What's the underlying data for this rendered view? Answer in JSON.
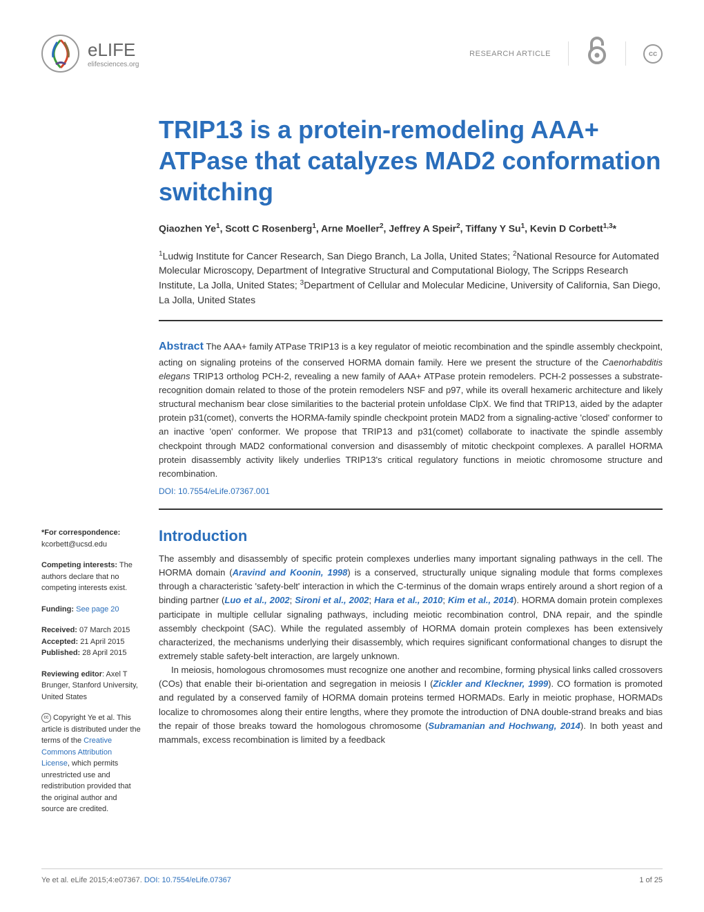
{
  "header": {
    "logo_text": "eLIFE",
    "logo_subtext": "elifesciences.org",
    "article_type": "RESEARCH ARTICLE",
    "cc_text": "cc"
  },
  "title": "TRIP13 is a protein-remodeling AAA+ ATPase that catalyzes MAD2 conformation switching",
  "authors_html": "Qiaozhen Ye<sup>1</sup>, Scott C Rosenberg<sup>1</sup>, Arne Moeller<sup>2</sup>, Jeffrey A Speir<sup>2</sup>, Tiffany Y Su<sup>1</sup>, Kevin D Corbett<sup>1,3</sup>*",
  "affiliations_html": "<sup>1</sup>Ludwig Institute for Cancer Research, San Diego Branch, La Jolla, United States; <sup>2</sup>National Resource for Automated Molecular Microscopy, Department of Integrative Structural and Computational Biology, The Scripps Research Institute, La Jolla, United States; <sup>3</sup>Department of Cellular and Molecular Medicine, University of California, San Diego, La Jolla, United States",
  "abstract": {
    "label": "Abstract",
    "text_html": "The AAA+ family ATPase TRIP13 is a key regulator of meiotic recombination and the spindle assembly checkpoint, acting on signaling proteins of the conserved HORMA domain family. Here we present the structure of the <em>Caenorhabditis elegans</em> TRIP13 ortholog PCH-2, revealing a new family of AAA+ ATPase protein remodelers. PCH-2 possesses a substrate-recognition domain related to those of the protein remodelers NSF and p97, while its overall hexameric architecture and likely structural mechanism bear close similarities to the bacterial protein unfoldase ClpX. We find that TRIP13, aided by the adapter protein p31(comet), converts the HORMA-family spindle checkpoint protein MAD2 from a signaling-active 'closed' conformer to an inactive 'open' conformer. We propose that TRIP13 and p31(comet) collaborate to inactivate the spindle assembly checkpoint through MAD2 conformational conversion and disassembly of mitotic checkpoint complexes. A parallel HORMA protein disassembly activity likely underlies TRIP13's critical regulatory functions in meiotic chromosome structure and recombination.",
    "doi": "DOI: 10.7554/eLife.07367.001"
  },
  "sidebar": {
    "correspondence_label": "*For correspondence:",
    "correspondence_value": "kcorbett@ucsd.edu",
    "competing_label": "Competing interests:",
    "competing_value": "The authors declare that no competing interests exist.",
    "funding_label": "Funding:",
    "funding_link": "See page 20",
    "received_label": "Received:",
    "received_value": "07 March 2015",
    "accepted_label": "Accepted:",
    "accepted_value": "21 April 2015",
    "published_label": "Published:",
    "published_value": "28 April 2015",
    "reviewing_label": "Reviewing editor",
    "reviewing_value": ": Axel T Brunger, Stanford University, United States",
    "copyright_prefix": "Copyright Ye et al. This article is distributed under the terms of the ",
    "license_link": "Creative Commons Attribution License",
    "copyright_suffix": ", which permits unrestricted use and redistribution provided that the original author and source are credited."
  },
  "introduction": {
    "heading": "Introduction",
    "para1_html": "The assembly and disassembly of specific protein complexes underlies many important signaling pathways in the cell. The HORMA domain (<span class='ref-link'>Aravind and Koonin, 1998</span>) is a conserved, structurally unique signaling module that forms complexes through a characteristic 'safety-belt' interaction in which the C-terminus of the domain wraps entirely around a short region of a binding partner (<span class='ref-link'>Luo et al., 2002</span>; <span class='ref-link'>Sironi et al., 2002</span>; <span class='ref-link'>Hara et al., 2010</span>; <span class='ref-link'>Kim et al., 2014</span>). HORMA domain protein complexes participate in multiple cellular signaling pathways, including meiotic recombination control, DNA repair, and the spindle assembly checkpoint (SAC). While the regulated assembly of HORMA domain protein complexes has been extensively characterized, the mechanisms underlying their disassembly, which requires significant conformational changes to disrupt the extremely stable safety-belt interaction, are largely unknown.",
    "para2_html": "In meiosis, homologous chromosomes must recognize one another and recombine, forming physical links called crossovers (COs) that enable their bi-orientation and segregation in meiosis I (<span class='ref-link'>Zickler and Kleckner, 1999</span>). CO formation is promoted and regulated by a conserved family of HORMA domain proteins termed HORMADs. Early in meiotic prophase, HORMADs localize to chromosomes along their entire lengths, where they promote the introduction of DNA double-strand breaks and bias the repair of those breaks toward the homologous chromosome (<span class='ref-link'>Subramanian and Hochwang, 2014</span>). In both yeast and mammals, excess recombination is limited by a feedback"
  },
  "footer": {
    "citation": "Ye et al. eLife 2015;4:e07367.",
    "doi_label": "DOI: 10.7554/eLife.07367",
    "page": "1 of 25"
  },
  "colors": {
    "primary": "#2a6ebb",
    "text": "#333333",
    "muted": "#888888"
  }
}
